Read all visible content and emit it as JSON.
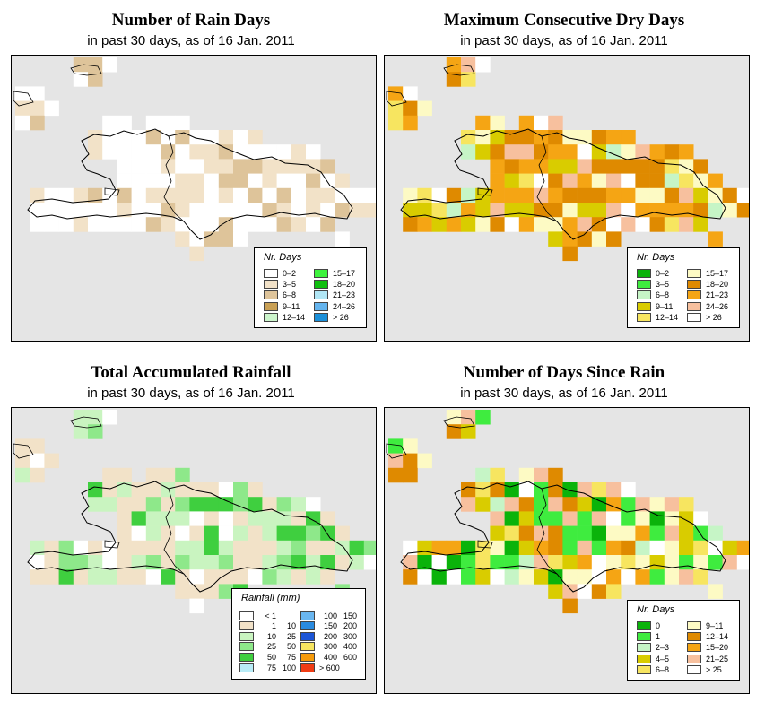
{
  "panels": [
    {
      "id": "rain-days",
      "title": "Number of Rain Days",
      "subtitle": "in past 30 days, as of  16 Jan. 2011",
      "legend": {
        "title": "Nr. Days",
        "items": [
          {
            "label": "0–2",
            "color": "#ffffff"
          },
          {
            "label": "3–5",
            "color": "#f2e2c8"
          },
          {
            "label": "6–8",
            "color": "#dec49a"
          },
          {
            "label": "9–11",
            "color": "#c9a055"
          },
          {
            "label": "12–14",
            "color": "#ccf5cc"
          },
          {
            "label": "15–17",
            "color": "#3ef33e"
          },
          {
            "label": "18–20",
            "color": "#0fbf0f"
          },
          {
            "label": "21–23",
            "color": "#b0e6f5"
          },
          {
            "label": "24–26",
            "color": "#64b4ee"
          },
          {
            "label": "> 26",
            "color": "#1b8fd8"
          }
        ]
      }
    },
    {
      "id": "max-dry-days",
      "title": "Maximum Consecutive Dry Days",
      "subtitle": "in past 30 days, as of  16 Jan. 2011",
      "legend": {
        "title": "Nr. Days",
        "items": [
          {
            "label": "0–2",
            "color": "#0ab30a"
          },
          {
            "label": "3–5",
            "color": "#3fec3f"
          },
          {
            "label": "6–8",
            "color": "#c6f5c6"
          },
          {
            "label": "9–11",
            "color": "#d9cc00"
          },
          {
            "label": "12–14",
            "color": "#f7e560"
          },
          {
            "label": "15–17",
            "color": "#fdfac4"
          },
          {
            "label": "18–20",
            "color": "#df8a00"
          },
          {
            "label": "21–23",
            "color": "#f5a514"
          },
          {
            "label": "24–26",
            "color": "#f7c09e"
          },
          {
            "label": "> 26",
            "color": "#ffffff"
          }
        ]
      }
    },
    {
      "id": "total-rainfall",
      "title": "Total Accumulated Rainfall",
      "subtitle": "in past 30 days, as of  16 Jan. 2011",
      "legend": {
        "title": "Rainfall (mm)",
        "items": [
          {
            "label_a": "< 1",
            "label_b": "",
            "color": "#ffffff"
          },
          {
            "label_a": "1",
            "label_b": "10",
            "color": "#f2e2c8"
          },
          {
            "label_a": "10",
            "label_b": "25",
            "color": "#c9f4c0"
          },
          {
            "label_a": "25",
            "label_b": "50",
            "color": "#8ee88a"
          },
          {
            "label_a": "50",
            "label_b": "75",
            "color": "#3fcf3f"
          },
          {
            "label_a": "75",
            "label_b": "100",
            "color": "#b8ecf7"
          },
          {
            "label_a": "100",
            "label_b": "150",
            "color": "#69b6f0"
          },
          {
            "label_a": "150",
            "label_b": "200",
            "color": "#2a8be0"
          },
          {
            "label_a": "200",
            "label_b": "300",
            "color": "#1c55d6"
          },
          {
            "label_a": "300",
            "label_b": "400",
            "color": "#f7e560"
          },
          {
            "label_a": "400",
            "label_b": "600",
            "color": "#f59a0a"
          },
          {
            "label_a": "> 600",
            "label_b": "",
            "color": "#f03c14"
          }
        ]
      }
    },
    {
      "id": "days-since-rain",
      "title": "Number of Days Since Rain",
      "subtitle": "in past 30 days, as of  16 Jan. 2011",
      "legend": {
        "title": "Nr. Days",
        "items": [
          {
            "label": "0",
            "color": "#0ab30a"
          },
          {
            "label": "1",
            "color": "#3fec3f"
          },
          {
            "label": "2–3",
            "color": "#c6f5c6"
          },
          {
            "label": "4–5",
            "color": "#d9cc00"
          },
          {
            "label": "6–8",
            "color": "#f7e560"
          },
          {
            "label": "9–11",
            "color": "#fdfac4"
          },
          {
            "label": "12–14",
            "color": "#df8a00"
          },
          {
            "label": "15–20",
            "color": "#f5a514"
          },
          {
            "label": "21–25",
            "color": "#f7c09e"
          },
          {
            "label": "> 25",
            "color": "#ffffff"
          }
        ]
      }
    }
  ],
  "map_colors": {
    "background": "#e5e5e5",
    "outline": "#000000"
  }
}
